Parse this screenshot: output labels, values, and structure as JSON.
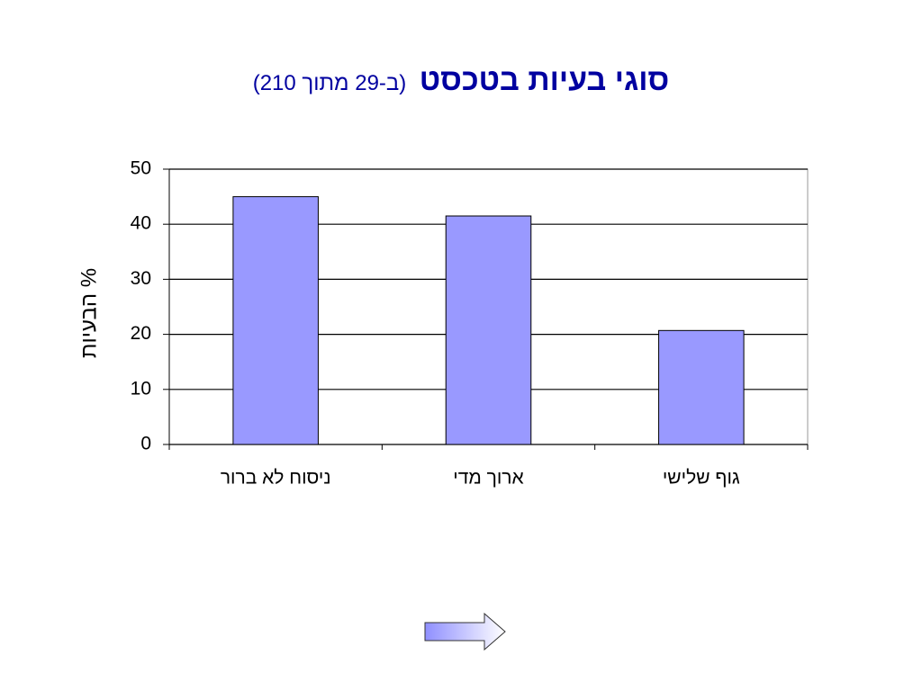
{
  "chart_data": {
    "type": "bar",
    "title": "סוגי בעיות בטכסט",
    "subtitle": "(ב-29 מתוך 210)",
    "y_label": "% הבעיות",
    "categories": [
      "ניסוח לא ברור",
      "ארוך מדי",
      "גוף שלישי"
    ],
    "values": [
      45,
      41.5,
      20.7
    ],
    "color": "#9999ff",
    "ylim": [
      0,
      50
    ],
    "yticks": [
      0,
      10,
      20,
      30,
      40,
      50
    ],
    "grid": true
  }
}
